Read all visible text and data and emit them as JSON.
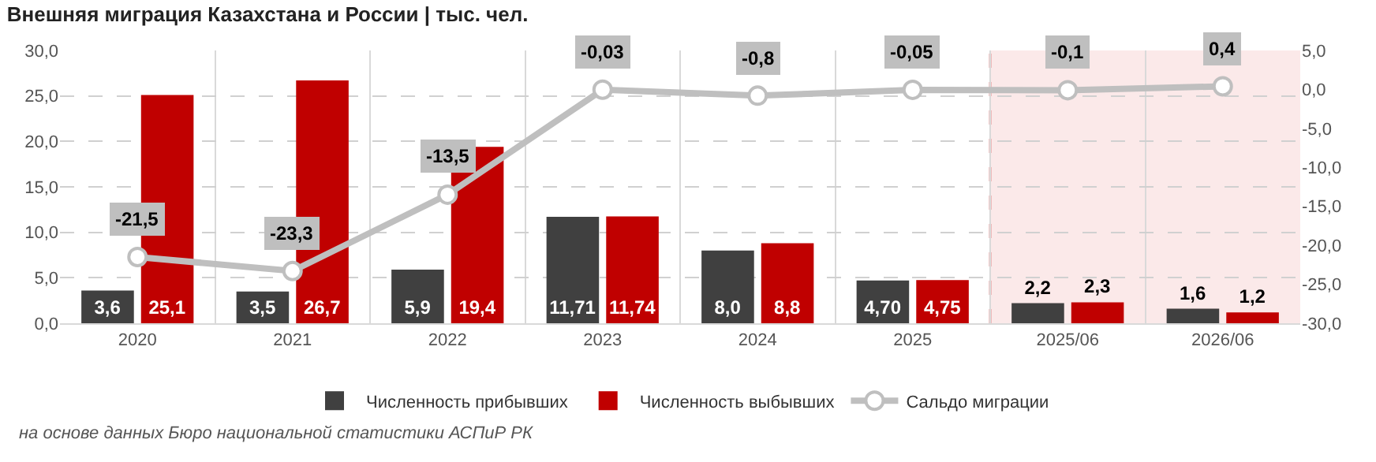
{
  "chart_data": {
    "type": "bar",
    "title": "Внешняя миграция Казахстана и России | тыс. чел.",
    "annotations": [
      "на основе данных Бюро национальной статистики АСПиР РК"
    ],
    "categories": [
      "2020",
      "2021",
      "2022",
      "2023",
      "2024",
      "2025",
      "2025/06",
      "2026/06"
    ],
    "series": [
      {
        "name": "Численность прибывших",
        "color": "#404040",
        "values": [
          3.6,
          3.5,
          5.9,
          11.71,
          8.0,
          4.7,
          2.2,
          1.6
        ],
        "value_labels": [
          "3,6",
          "3,5",
          "5,9",
          "11,71",
          "8,0",
          "4,70",
          "2,2",
          "1,6"
        ]
      },
      {
        "name": "Численность выбывших",
        "color": "#c00000",
        "values": [
          25.1,
          26.7,
          19.4,
          11.74,
          8.8,
          4.75,
          2.3,
          1.2
        ],
        "value_labels": [
          "25,1",
          "26,7",
          "19,4",
          "11,74",
          "8,8",
          "4,75",
          "2,3",
          "1,2"
        ]
      },
      {
        "name": "Сальдо миграции",
        "type": "line",
        "axis": "y2",
        "color": "#bfbfbf",
        "marker": "circle",
        "values": [
          -21.5,
          -23.3,
          -13.5,
          -0.03,
          -0.8,
          -0.05,
          -0.1,
          0.4
        ],
        "value_labels": [
          "-21,5",
          "-23,3",
          "-13,5",
          "-0,03",
          "-0,8",
          "-0,05",
          "-0,1",
          "0,4"
        ]
      }
    ],
    "ylim": [
      0,
      30
    ],
    "yticks": [
      {
        "value": 0,
        "label": "0,0"
      },
      {
        "value": 5,
        "label": "5,0"
      },
      {
        "value": 10,
        "label": "10,0"
      },
      {
        "value": 15,
        "label": "15,0"
      },
      {
        "value": 20,
        "label": "20,0"
      },
      {
        "value": 25,
        "label": "25,0"
      },
      {
        "value": 30,
        "label": "30,0"
      }
    ],
    "y2lim": [
      -30,
      5
    ],
    "y2ticks": [
      {
        "value": -30,
        "label": "-30,0"
      },
      {
        "value": -25,
        "label": "-25,0"
      },
      {
        "value": -20,
        "label": "-20,0"
      },
      {
        "value": -15,
        "label": "-15,0"
      },
      {
        "value": -10,
        "label": "-10,0"
      },
      {
        "value": -5,
        "label": "-5,0"
      },
      {
        "value": 0,
        "label": "0,0"
      },
      {
        "value": 5,
        "label": "5,0"
      }
    ],
    "bands": [
      {
        "axis": "x",
        "from": "2025/06",
        "to": "2026/06",
        "color": "#fbe9e9"
      }
    ],
    "ref_lines": [
      {
        "axis": "x",
        "value": "2025/06",
        "color": "#c00000",
        "line_style": "dashed"
      }
    ],
    "grid": true,
    "legend": "bottom"
  }
}
